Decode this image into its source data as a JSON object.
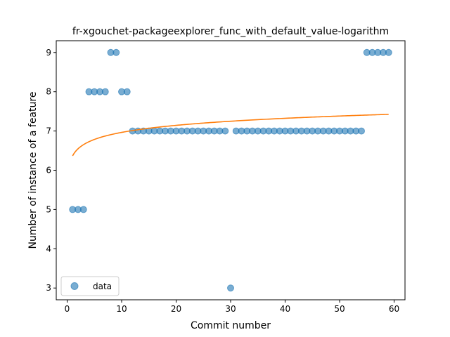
{
  "chart_data": {
    "type": "scatter",
    "title": "fr-xgouchet-packageexplorer_func_with_default_value-logarithm",
    "xlabel": "Commit number",
    "ylabel": "Number of instance of a feature",
    "xlim": [
      -2,
      62
    ],
    "ylim": [
      2.7,
      9.3
    ],
    "xticks": [
      0,
      10,
      20,
      30,
      40,
      50,
      60
    ],
    "yticks": [
      3,
      4,
      5,
      6,
      7,
      8,
      9
    ],
    "grid": false,
    "legend_position": "lower-left",
    "series": [
      {
        "name": "data",
        "kind": "scatter",
        "color": "#1f77b4",
        "x": [
          1,
          2,
          3,
          4,
          5,
          6,
          7,
          8,
          9,
          10,
          11,
          12,
          13,
          14,
          15,
          16,
          17,
          18,
          19,
          20,
          21,
          22,
          23,
          24,
          25,
          26,
          27,
          28,
          29,
          30,
          31,
          32,
          33,
          34,
          35,
          36,
          37,
          38,
          39,
          40,
          41,
          42,
          43,
          44,
          45,
          46,
          47,
          48,
          49,
          50,
          51,
          52,
          53,
          54,
          55,
          56,
          57,
          58,
          59
        ],
        "y": [
          5,
          5,
          5,
          8,
          8,
          8,
          8,
          9,
          9,
          8,
          8,
          7,
          7,
          7,
          7,
          7,
          7,
          7,
          7,
          7,
          7,
          7,
          7,
          7,
          7,
          7,
          7,
          7,
          7,
          3,
          7,
          7,
          7,
          7,
          7,
          7,
          7,
          7,
          7,
          7,
          7,
          7,
          7,
          7,
          7,
          7,
          7,
          7,
          7,
          7,
          7,
          7,
          7,
          7,
          9,
          9,
          9,
          9,
          9
        ]
      },
      {
        "kind": "line",
        "color": "#ff7f0e",
        "fit": "logarithmic",
        "x_range": [
          1,
          59
        ],
        "x": [
          1,
          2,
          3,
          5,
          10,
          20,
          30,
          40,
          50,
          59
        ],
        "y": [
          6.36,
          6.55,
          6.65,
          6.79,
          6.97,
          7.15,
          7.25,
          7.33,
          7.38,
          7.41
        ]
      }
    ]
  }
}
